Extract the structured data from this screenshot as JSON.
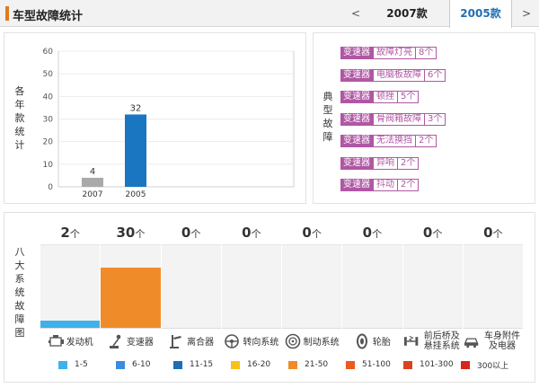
{
  "header": {
    "title": "车型故障统计",
    "prev": "<",
    "next": ">",
    "tabs": [
      "2007款",
      "2005款"
    ],
    "active_tab": "2005款"
  },
  "chart_panel": {
    "vertical_label": "各年款统计"
  },
  "chart_data": {
    "type": "bar",
    "categories": [
      "2007",
      "2005"
    ],
    "values": [
      4,
      32
    ],
    "ylim": [
      0,
      60
    ],
    "yticks": [
      0,
      10,
      20,
      30,
      40,
      50,
      60
    ],
    "colors": [
      "#a9a9a9",
      "#1a76c0"
    ],
    "grid": true
  },
  "faults_panel": {
    "vertical_label": "典型故障",
    "items": [
      {
        "category": "变速器",
        "name": "故障灯亮",
        "count": "8个"
      },
      {
        "category": "变速器",
        "name": "电脑板故障",
        "count": "6个"
      },
      {
        "category": "变速器",
        "name": "顿挫",
        "count": "5个"
      },
      {
        "category": "变速器",
        "name": "骨阀箱故障",
        "count": "3个"
      },
      {
        "category": "变速器",
        "name": "无法换挡",
        "count": "2个"
      },
      {
        "category": "变速器",
        "name": "异响",
        "count": "2个"
      },
      {
        "category": "变速器",
        "name": "抖动",
        "count": "2个"
      }
    ]
  },
  "systems_panel": {
    "vertical_label": "八大系统故障图",
    "unit": "个",
    "max": 30,
    "systems": [
      {
        "count": 2,
        "name": "发动机",
        "icon": "engine-icon",
        "color": "#3fb1ea"
      },
      {
        "count": 30,
        "name": "变速器",
        "icon": "gear-shift-icon",
        "color": "#f08b2a"
      },
      {
        "count": 0,
        "name": "离合器",
        "icon": "clutch-icon",
        "color": ""
      },
      {
        "count": 0,
        "name": "转向系统",
        "icon": "steering-wheel-icon",
        "color": ""
      },
      {
        "count": 0,
        "name": "制动系统",
        "icon": "brake-disc-icon",
        "color": ""
      },
      {
        "count": 0,
        "name": "轮胎",
        "icon": "tire-icon",
        "color": ""
      },
      {
        "count": 0,
        "name": "前后桥及悬挂系统",
        "icon": "suspension-icon",
        "color": ""
      },
      {
        "count": 0,
        "name": "车身附件及电器",
        "icon": "car-body-icon",
        "color": ""
      }
    ],
    "legend": [
      {
        "label": "1-5",
        "color": "#3fb1ea"
      },
      {
        "label": "6-10",
        "color": "#3a8ce0"
      },
      {
        "label": "11-15",
        "color": "#1c6fb6"
      },
      {
        "label": "16-20",
        "color": "#f6c21a"
      },
      {
        "label": "21-50",
        "color": "#f08b2a"
      },
      {
        "label": "51-100",
        "color": "#ea5b1e"
      },
      {
        "label": "101-300",
        "color": "#d94220"
      },
      {
        "label": "300以上",
        "color": "#d9241f"
      }
    ]
  }
}
